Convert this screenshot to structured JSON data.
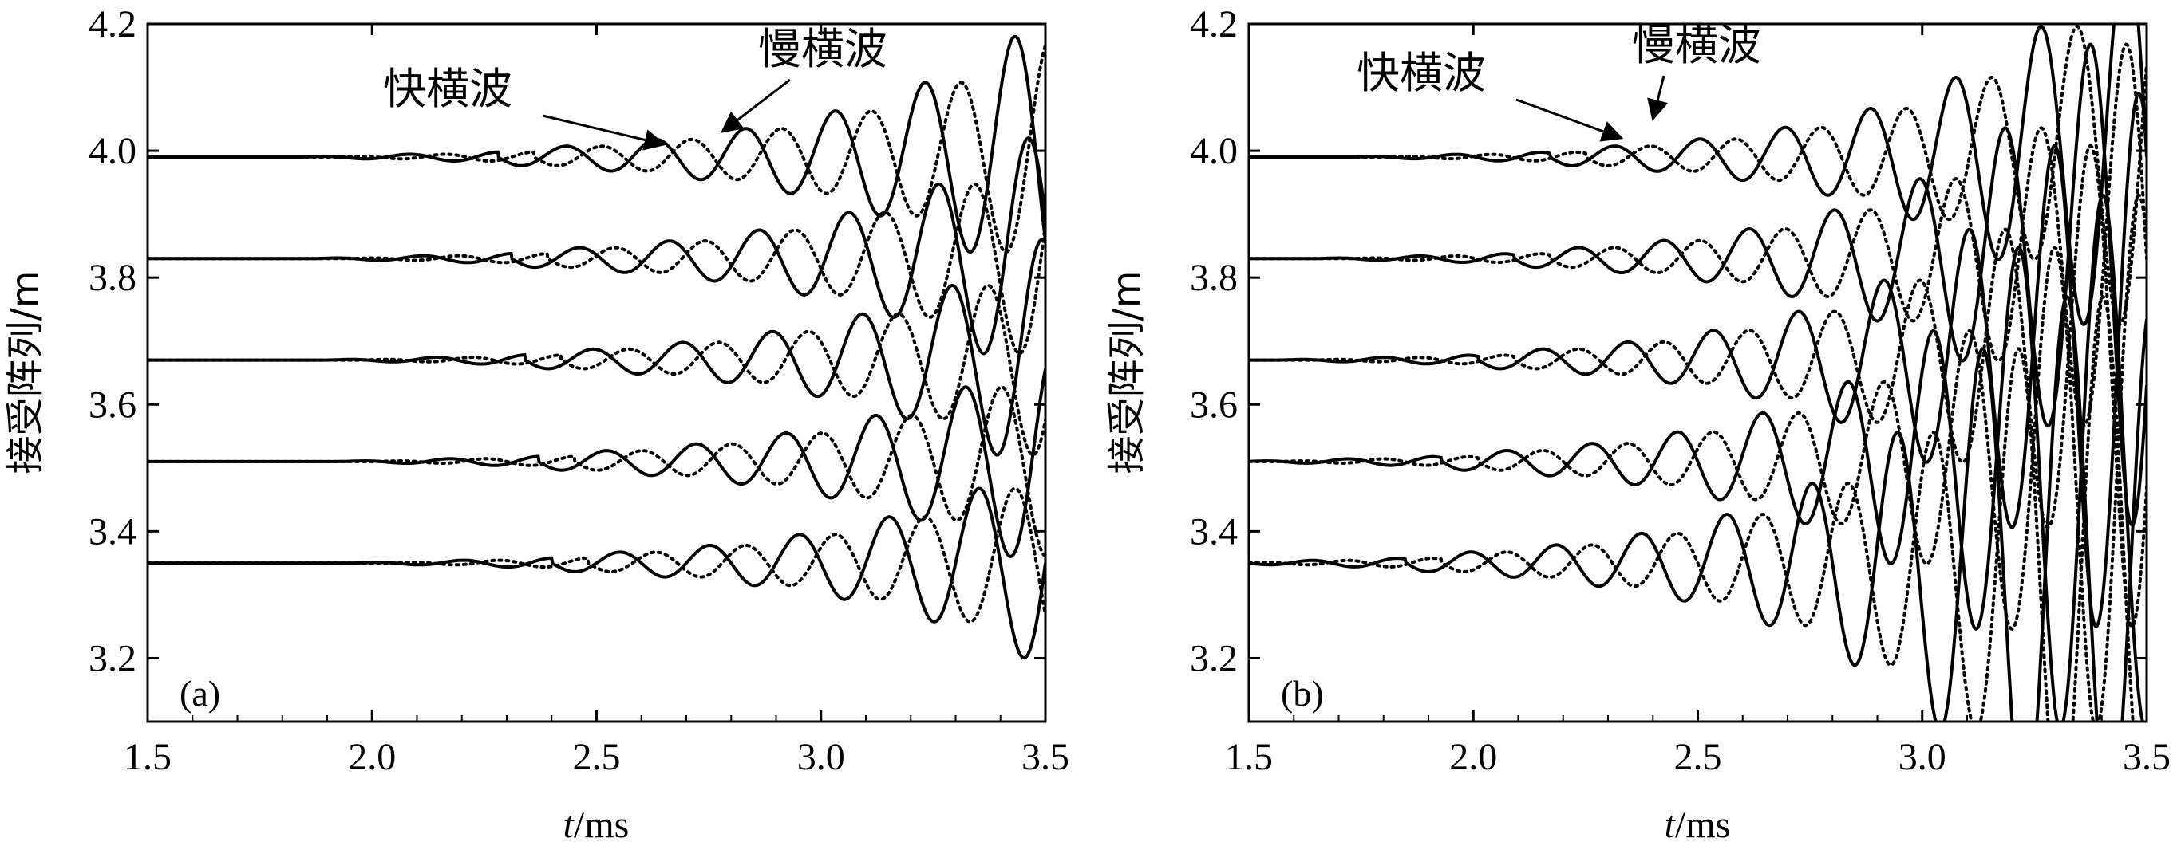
{
  "chart_data": [
    {
      "type": "line",
      "panel_label": "(a)",
      "xlabel_italic": "t",
      "xlabel_rest": "/ms",
      "ylabel": "接受阵列/m",
      "xlim": [
        1.5,
        3.5
      ],
      "ylim": [
        3.1,
        4.2
      ],
      "xticks": [
        "1.5",
        "2.0",
        "2.5",
        "3.0",
        "3.5"
      ],
      "yticks": [
        "3.2",
        "3.4",
        "3.6",
        "3.8",
        "4.0",
        "4.2"
      ],
      "grid": false,
      "receiver_baselines": [
        3.35,
        3.51,
        3.67,
        3.83,
        3.99
      ],
      "series": [
        {
          "name": "快横波",
          "style": "solid",
          "onset_ms": [
            2.4,
            2.37,
            2.34,
            2.31,
            2.28
          ],
          "period_ms": 0.2,
          "amplitude_growth": 2.4
        },
        {
          "name": "慢横波",
          "style": "dotted",
          "onset_ms": [
            2.48,
            2.45,
            2.42,
            2.39,
            2.36
          ],
          "period_ms": 0.2,
          "amplitude_growth": 2.4
        }
      ],
      "annotations": [
        {
          "text": "快横波",
          "points_to": {
            "x": 2.65,
            "y": 4.01
          }
        },
        {
          "text": "慢横波",
          "points_to": {
            "x": 2.78,
            "y": 4.03
          }
        }
      ]
    },
    {
      "type": "line",
      "panel_label": "(b)",
      "xlabel_italic": "t",
      "xlabel_rest": "/ms",
      "ylabel": "接受阵列/m",
      "xlim": [
        1.5,
        3.5
      ],
      "ylim": [
        3.1,
        4.2
      ],
      "xticks": [
        "1.5",
        "2.0",
        "2.5",
        "3.0",
        "3.5"
      ],
      "yticks": [
        "3.2",
        "3.4",
        "3.6",
        "3.8",
        "4.0",
        "4.2"
      ],
      "grid": false,
      "receiver_baselines": [
        3.35,
        3.51,
        3.67,
        3.83,
        3.99
      ],
      "series": [
        {
          "name": "快横波",
          "style": "solid",
          "onset_ms": [
            1.85,
            1.93,
            2.01,
            2.09,
            2.17
          ],
          "period_ms": 0.19,
          "amplitude_growth": 2.6
        },
        {
          "name": "慢横波",
          "style": "dotted",
          "onset_ms": [
            1.93,
            2.01,
            2.09,
            2.17,
            2.25
          ],
          "period_ms": 0.19,
          "amplitude_growth": 2.6
        }
      ],
      "annotations": [
        {
          "text": "快横波",
          "points_to": {
            "x": 2.33,
            "y": 4.02
          }
        },
        {
          "text": "慢横波",
          "points_to": {
            "x": 2.4,
            "y": 4.05
          }
        }
      ]
    }
  ]
}
